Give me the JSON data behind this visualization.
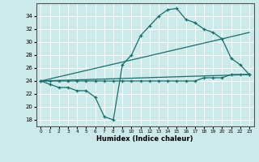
{
  "xlabel": "Humidex (Indice chaleur)",
  "bg_color": "#cceaea",
  "grid_color": "#ffffff",
  "line_color": "#1a6b6b",
  "xlim": [
    -0.5,
    23.5
  ],
  "ylim": [
    17.0,
    36.0
  ],
  "xticks": [
    0,
    1,
    2,
    3,
    4,
    5,
    6,
    7,
    8,
    9,
    10,
    11,
    12,
    13,
    14,
    15,
    16,
    17,
    18,
    19,
    20,
    21,
    22,
    23
  ],
  "yticks": [
    18,
    20,
    22,
    24,
    26,
    28,
    30,
    32,
    34
  ],
  "curve1_x": [
    0,
    1,
    2,
    3,
    4,
    5,
    6,
    7,
    8,
    9,
    10,
    11,
    12,
    13,
    14,
    15,
    16,
    17,
    18,
    19,
    20,
    21,
    22,
    23
  ],
  "curve1_y": [
    24.0,
    23.5,
    23.0,
    23.0,
    22.5,
    22.5,
    21.5,
    18.5,
    18.0,
    26.5,
    28.0,
    31.0,
    32.5,
    34.0,
    35.0,
    35.2,
    33.5,
    33.0,
    32.0,
    31.5,
    30.5,
    27.5,
    26.5,
    25.0
  ],
  "curve2_x": [
    0,
    23
  ],
  "curve2_y": [
    24.0,
    25.0
  ],
  "curve3_x": [
    0,
    20,
    23
  ],
  "curve3_y": [
    24.0,
    30.5,
    31.5
  ],
  "curve4_x": [
    0,
    1,
    2,
    3,
    4,
    5,
    6,
    7,
    8,
    9,
    10,
    11,
    12,
    13,
    14,
    15,
    16,
    17,
    18,
    19,
    20,
    21,
    22,
    23
  ],
  "curve4_y": [
    24.0,
    24.0,
    24.0,
    24.0,
    24.0,
    24.0,
    24.0,
    24.0,
    24.0,
    24.0,
    24.0,
    24.0,
    24.0,
    24.0,
    24.0,
    24.0,
    24.0,
    24.0,
    24.5,
    24.5,
    24.5,
    25.0,
    25.0,
    25.0
  ]
}
